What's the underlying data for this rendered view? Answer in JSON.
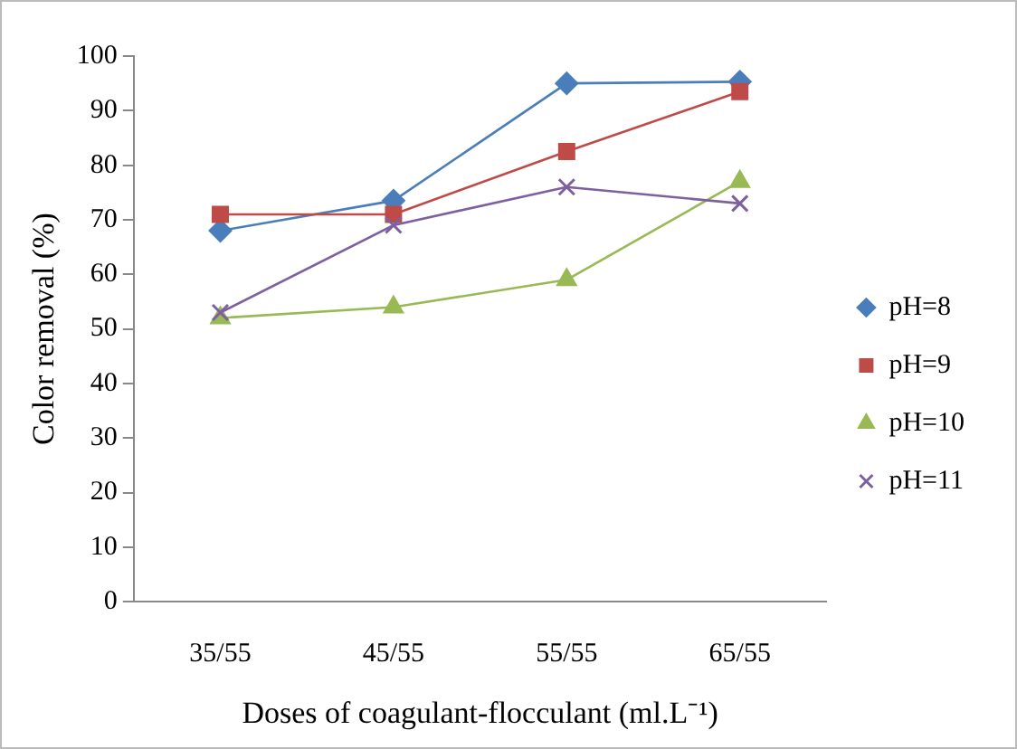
{
  "chart_data": {
    "type": "line",
    "xlabel": "Doses of coagulant-flocculant (ml.L⁻¹)",
    "ylabel": "Color removal (%)",
    "categories": [
      "35/55",
      "45/55",
      "55/55",
      "65/55"
    ],
    "ylim": [
      0,
      100
    ],
    "yticks": [
      0,
      10,
      20,
      30,
      40,
      50,
      60,
      70,
      80,
      90,
      100
    ],
    "grid": false,
    "legend": "right",
    "line_style": "solid",
    "series": [
      {
        "name": "pH=8",
        "color": "#4a7ebb",
        "marker": "diamond",
        "values": [
          68,
          73.5,
          95,
          95.3
        ]
      },
      {
        "name": "pH=9",
        "color": "#be4b48",
        "marker": "square",
        "values": [
          71,
          71,
          82.5,
          93.5
        ]
      },
      {
        "name": "pH=10",
        "color": "#98b954",
        "marker": "triangle",
        "values": [
          52,
          54,
          59,
          77
        ]
      },
      {
        "name": "pH=11",
        "color": "#7d60a0",
        "marker": "cross",
        "values": [
          53,
          69,
          76,
          73
        ]
      }
    ]
  }
}
